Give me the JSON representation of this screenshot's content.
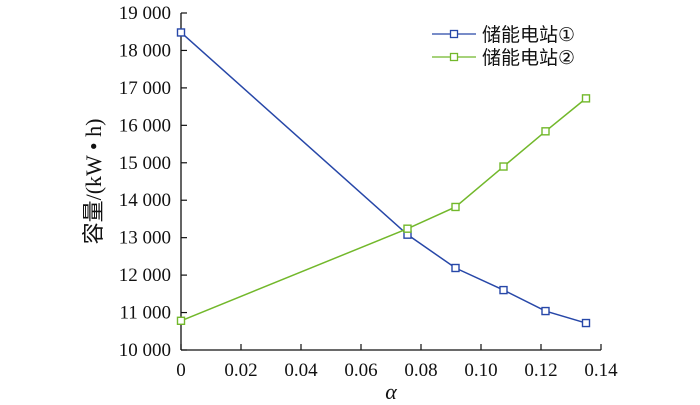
{
  "chart_data": {
    "type": "line",
    "xlabel": "α",
    "ylabel": "容量/(kW • h)",
    "xlim": [
      0,
      0.14
    ],
    "ylim": [
      10000,
      19000
    ],
    "xticks": [
      0,
      0.02,
      0.04,
      0.06,
      0.08,
      0.1,
      0.12,
      0.14
    ],
    "xtick_labels": [
      "0",
      "0.02",
      "0.04",
      "0.06",
      "0.08",
      "0.10",
      "0.12",
      "0.14"
    ],
    "yticks": [
      10000,
      11000,
      12000,
      13000,
      14000,
      15000,
      16000,
      17000,
      18000,
      19000
    ],
    "ytick_labels": [
      "10 000",
      "11 000",
      "12 000",
      "13 000",
      "14 000",
      "15 000",
      "16 000",
      "17 000",
      "18 000",
      "19 000"
    ],
    "legend_position": "top-right",
    "grid": false,
    "series": [
      {
        "name": "储能电站①",
        "color": "#2747a8",
        "marker": "square",
        "x": [
          0,
          0.0755,
          0.0915,
          0.1075,
          0.1215,
          0.135
        ],
        "y": [
          18480,
          13080,
          12190,
          11600,
          11040,
          10720
        ]
      },
      {
        "name": "储能电站②",
        "color": "#72b82b",
        "marker": "square",
        "x": [
          0,
          0.0755,
          0.0915,
          0.1075,
          0.1215,
          0.135
        ],
        "y": [
          10780,
          13240,
          13820,
          14900,
          15840,
          16720
        ]
      }
    ]
  }
}
